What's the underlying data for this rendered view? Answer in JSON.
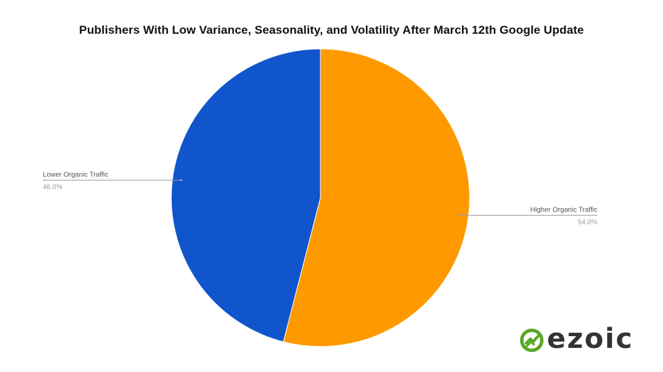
{
  "chart_data": {
    "type": "pie",
    "title": "Publishers With Low Variance, Seasonality, and Volatility After March 12th Google Update",
    "slices": [
      {
        "label": "Higher Organic Traffic",
        "value": 54.0,
        "display": "54.0%",
        "color": "#ff9900"
      },
      {
        "label": "Lower Organic Traffic",
        "value": 46.0,
        "display": "46.0%",
        "color": "#1155cc"
      }
    ],
    "legend": "none",
    "labels": "outside-with-leader-lines"
  },
  "logo": {
    "text": "ezoic",
    "color": "#5ba829"
  }
}
